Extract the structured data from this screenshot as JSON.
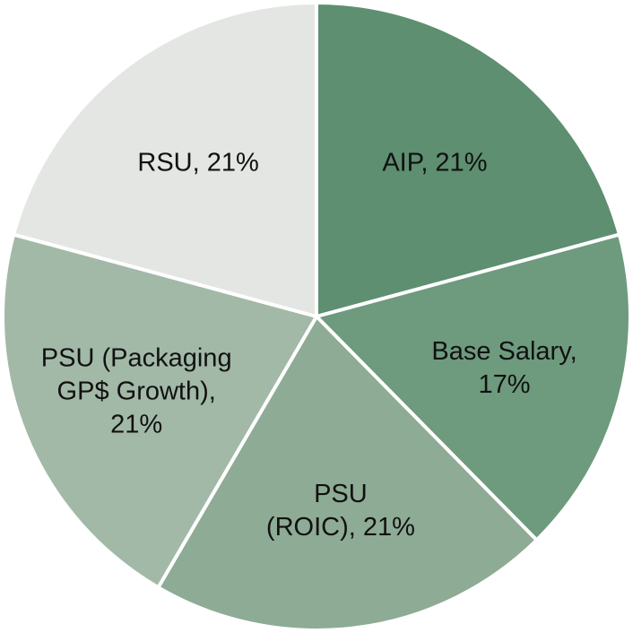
{
  "chart_data": {
    "type": "pie",
    "title": "",
    "legend": "none",
    "start": "12 o'clock, clockwise",
    "slices": [
      {
        "name": "AIP",
        "value": 21,
        "label_lines": [
          "AIP, 21%"
        ],
        "color": "#5d8f70"
      },
      {
        "name": "Base Salary",
        "value": 17,
        "label_lines": [
          "Base Salary,",
          "17%"
        ],
        "color": "#6e9a7e"
      },
      {
        "name": "PSU (ROIC)",
        "value": 21,
        "label_lines": [
          "PSU",
          "(ROIC), 21%"
        ],
        "color": "#8eab95"
      },
      {
        "name": "PSU (Packaging GP$ Growth)",
        "value": 21,
        "label_lines": [
          "PSU (Packaging",
          "GP$ Growth),",
          "21%"
        ],
        "color": "#a2b9a7"
      },
      {
        "name": "RSU",
        "value": 21,
        "label_lines": [
          "RSU, 21%"
        ],
        "color": "#e3e6e2"
      }
    ]
  }
}
